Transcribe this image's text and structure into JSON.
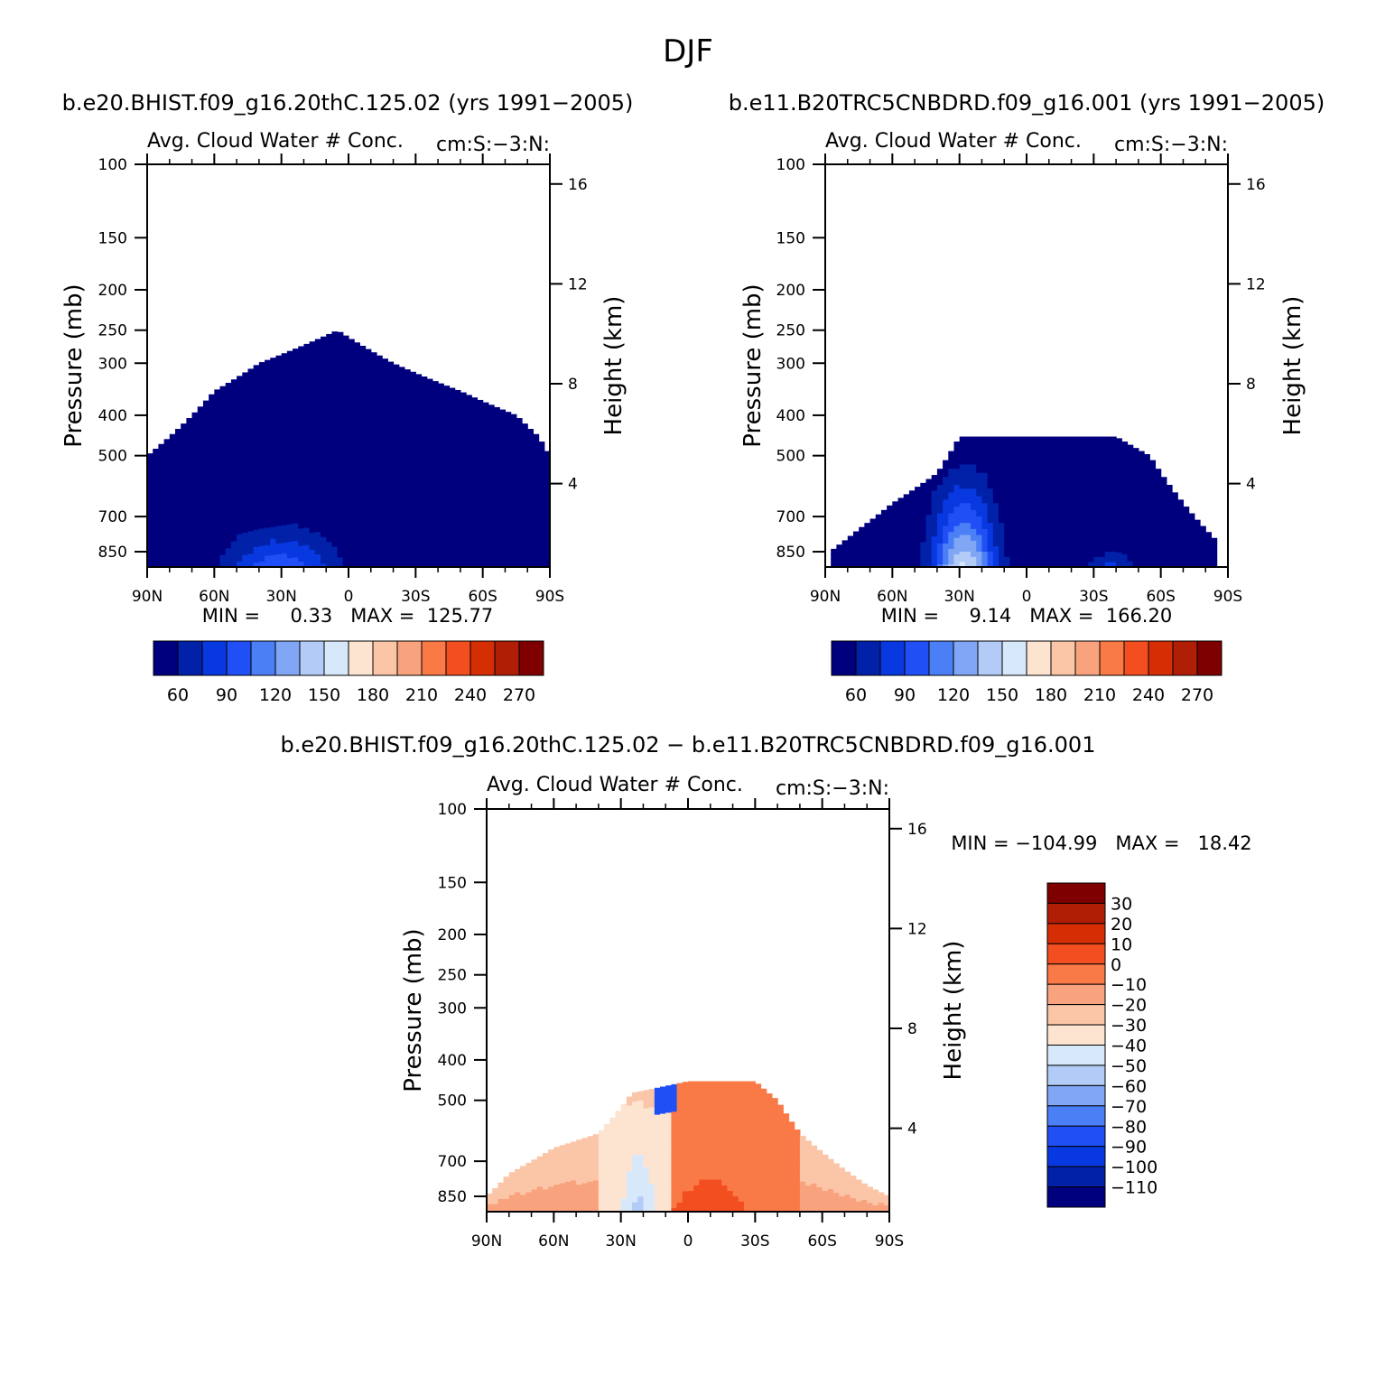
{
  "figure": {
    "title": "DJF",
    "diff_title": "b.e20.BHIST.f09_g16.20thC.125.02 − b.e11.B20TRC5CNBDRD.f09_g16.001"
  },
  "chart_data": [
    {
      "type": "heatmap",
      "case_title": "b.e20.BHIST.f09_g16.20thC.125.02 (yrs 1991−2005)",
      "title": "Avg. Cloud Water # Conc.",
      "units": "cm:S:−3:N:",
      "ylabel": "Pressure (mb)",
      "ylabel_right": "Height (km)",
      "x_ticks": [
        "90N",
        "60N",
        "30N",
        "0",
        "30S",
        "60S",
        "90S"
      ],
      "y_ticks": [
        "100",
        "150",
        "200",
        "250",
        "300",
        "400",
        "500",
        "700",
        "850"
      ],
      "y_right_ticks": [
        "16",
        "12",
        "8",
        "4"
      ],
      "min_label": "MIN =     0.33   MAX =  125.77",
      "min": 0.33,
      "max": 125.77,
      "colorbar_labels": [
        "60",
        "90",
        "120",
        "150",
        "180",
        "210",
        "240",
        "270"
      ],
      "colorbar_orientation": "horizontal",
      "cloud_top_profile": [
        {
          "lat": 90,
          "p": 500
        },
        {
          "lat": 80,
          "p": 450
        },
        {
          "lat": 70,
          "p": 400
        },
        {
          "lat": 60,
          "p": 350
        },
        {
          "lat": 40,
          "p": 300
        },
        {
          "lat": 5,
          "p": 250
        },
        {
          "lat": -20,
          "p": 300
        },
        {
          "lat": -50,
          "p": 350
        },
        {
          "lat": -75,
          "p": 400
        },
        {
          "lat": -85,
          "p": 450
        },
        {
          "lat": -90,
          "p": 500
        }
      ]
    },
    {
      "type": "heatmap",
      "case_title": "b.e11.B20TRC5CNBDRD.f09_g16.001 (yrs 1991−2005)",
      "title": "Avg. Cloud Water # Conc.",
      "units": "cm:S:−3:N:",
      "ylabel": "Pressure (mb)",
      "ylabel_right": "Height (km)",
      "x_ticks": [
        "90N",
        "60N",
        "30N",
        "0",
        "30S",
        "60S",
        "90S"
      ],
      "y_ticks": [
        "100",
        "150",
        "200",
        "250",
        "300",
        "400",
        "500",
        "700",
        "850"
      ],
      "y_right_ticks": [
        "16",
        "12",
        "8",
        "4"
      ],
      "min_label": "MIN =     9.14   MAX =  166.20",
      "min": 9.14,
      "max": 166.2,
      "colorbar_labels": [
        "60",
        "90",
        "120",
        "150",
        "180",
        "210",
        "240",
        "270"
      ],
      "colorbar_orientation": "horizontal",
      "cloud_top_profile": [
        {
          "lat": 88,
          "p": 850
        },
        {
          "lat": 75,
          "p": 750
        },
        {
          "lat": 60,
          "p": 650
        },
        {
          "lat": 40,
          "p": 550
        },
        {
          "lat": 30,
          "p": 450
        },
        {
          "lat": 0,
          "p": 450
        },
        {
          "lat": -40,
          "p": 450
        },
        {
          "lat": -55,
          "p": 500
        },
        {
          "lat": -65,
          "p": 600
        },
        {
          "lat": -75,
          "p": 700
        },
        {
          "lat": -85,
          "p": 800
        }
      ]
    },
    {
      "type": "heatmap",
      "title": "Avg. Cloud Water # Conc.",
      "units": "cm:S:−3:N:",
      "ylabel": "Pressure (mb)",
      "ylabel_right": "Height (km)",
      "x_ticks": [
        "90N",
        "60N",
        "30N",
        "0",
        "30S",
        "60S",
        "90S"
      ],
      "y_ticks": [
        "100",
        "150",
        "200",
        "250",
        "300",
        "400",
        "500",
        "700",
        "850"
      ],
      "y_right_ticks": [
        "16",
        "12",
        "8",
        "4"
      ],
      "min_label": "MIN = −104.99   MAX =   18.42",
      "min": -104.99,
      "max": 18.42,
      "colorbar_labels": [
        "30",
        "20",
        "10",
        "0",
        "−10",
        "−20",
        "−30",
        "−40",
        "−50",
        "−60",
        "−70",
        "−80",
        "−90",
        "−100",
        "−110"
      ],
      "colorbar_orientation": "vertical",
      "cloud_top_profile": [
        {
          "lat": 90,
          "p": 850
        },
        {
          "lat": 80,
          "p": 750
        },
        {
          "lat": 60,
          "p": 650
        },
        {
          "lat": 40,
          "p": 600
        },
        {
          "lat": 25,
          "p": 480
        },
        {
          "lat": 0,
          "p": 450
        },
        {
          "lat": -30,
          "p": 450
        },
        {
          "lat": -40,
          "p": 500
        },
        {
          "lat": -50,
          "p": 600
        },
        {
          "lat": -65,
          "p": 700
        },
        {
          "lat": -80,
          "p": 800
        },
        {
          "lat": -90,
          "p": 850
        }
      ]
    }
  ],
  "palette": [
    "#00007f",
    "#0021a8",
    "#0838df",
    "#1f4ff5",
    "#4b7ff5",
    "#80a6f5",
    "#b3cbf7",
    "#d8e8fb",
    "#fde4d0",
    "#fbc5a8",
    "#f9a37e",
    "#f97a47",
    "#f34e1f",
    "#d52e05",
    "#b01e05",
    "#7f0000"
  ]
}
